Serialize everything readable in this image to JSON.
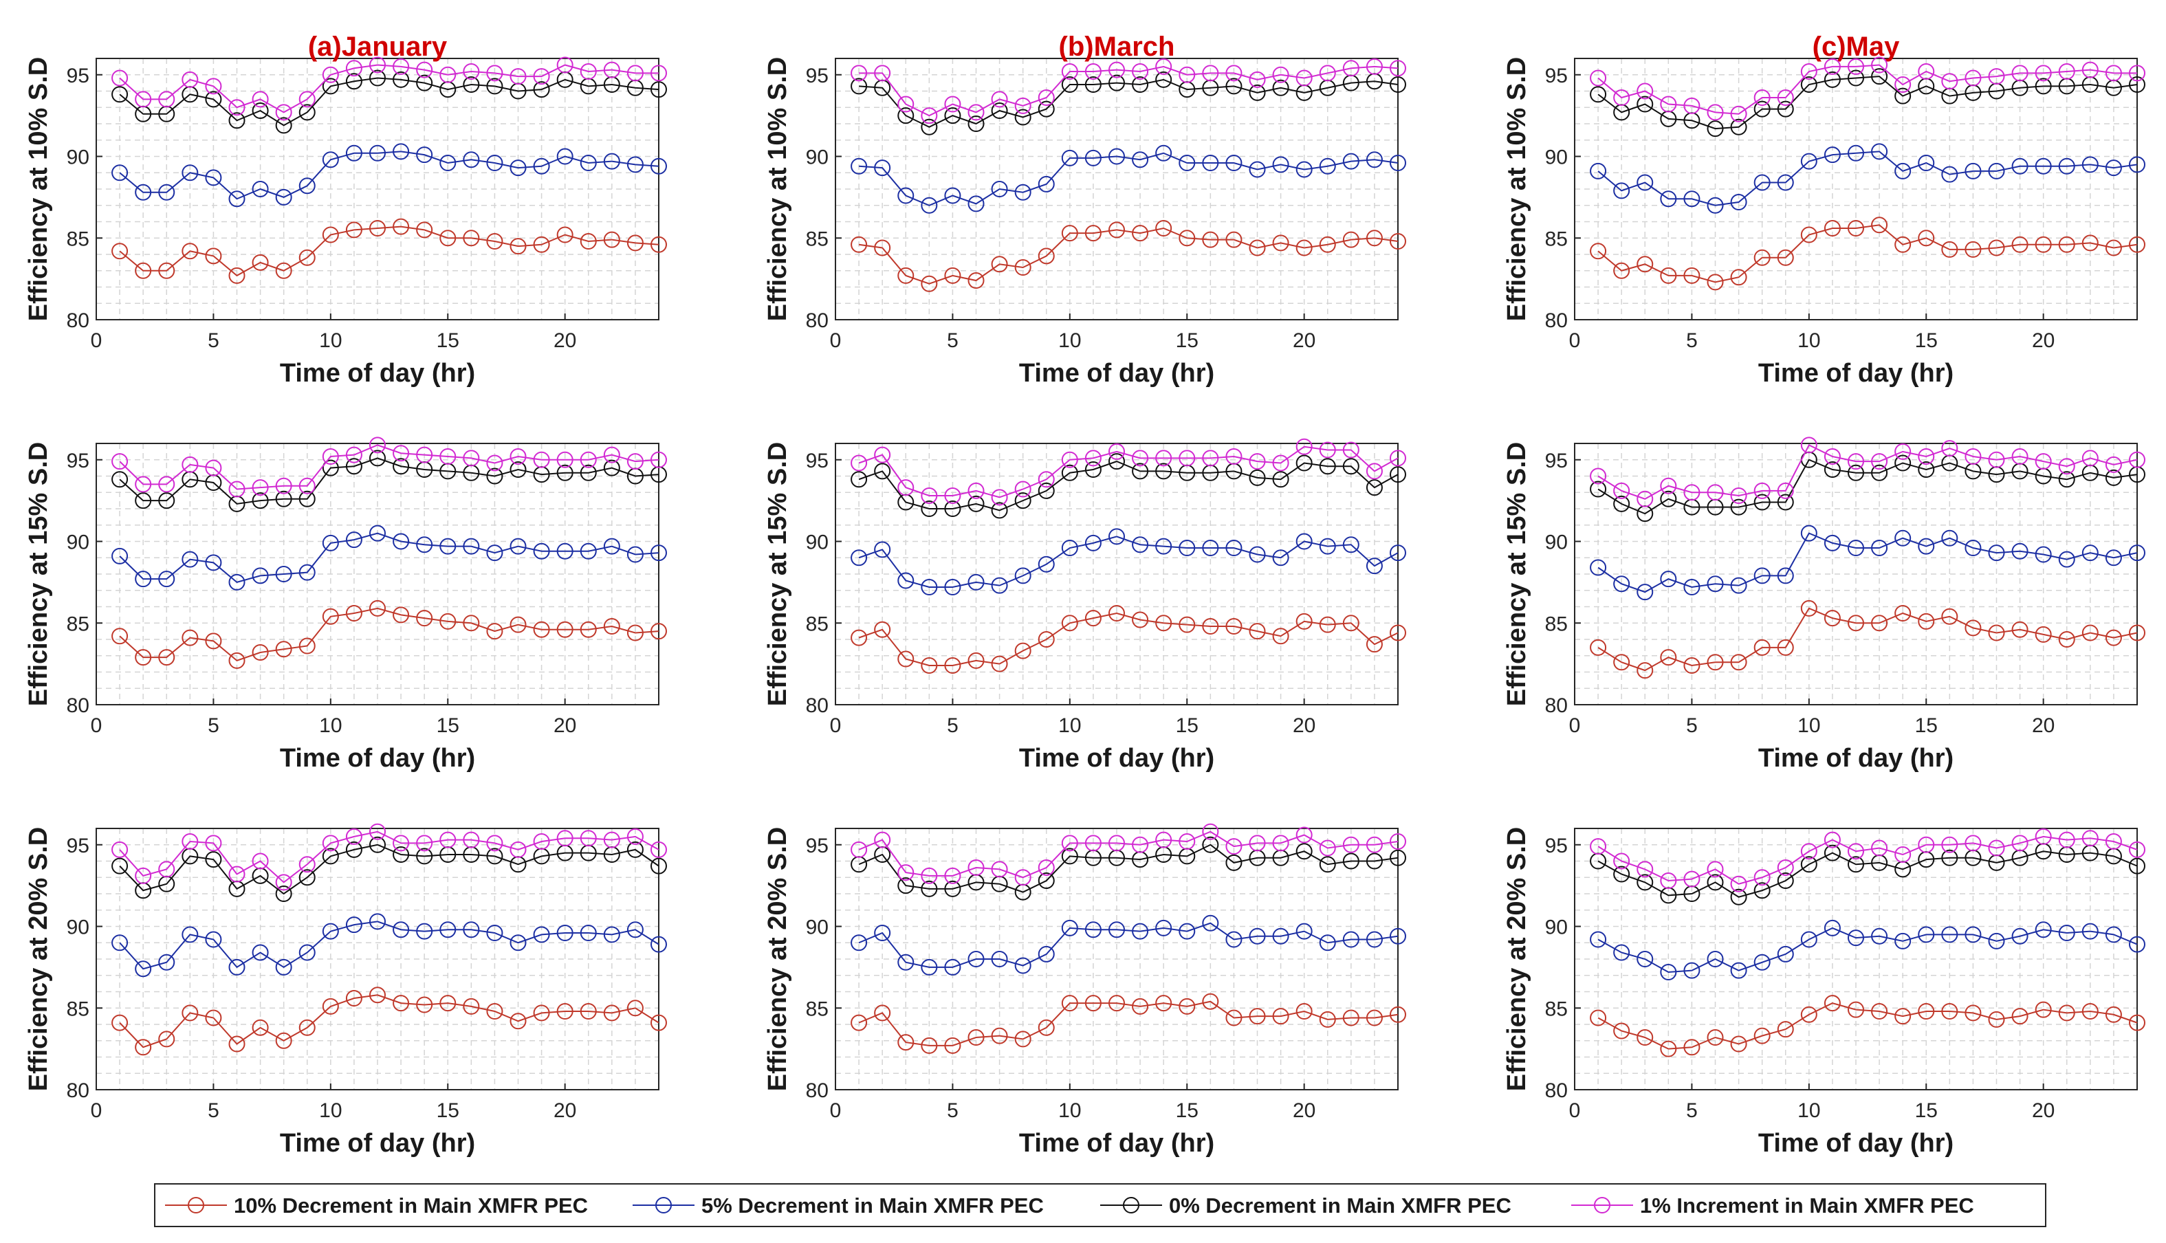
{
  "chart_data": {
    "type": "line",
    "x": [
      1,
      2,
      3,
      4,
      5,
      6,
      7,
      8,
      9,
      10,
      11,
      12,
      13,
      14,
      15,
      16,
      17,
      18,
      19,
      20,
      21,
      22,
      23,
      24
    ],
    "xlim": [
      0,
      24
    ],
    "ylim": [
      80,
      96
    ],
    "xticks": [
      "0",
      "5",
      "10",
      "15",
      "20"
    ],
    "yticks": [
      "80",
      "85",
      "90",
      "95"
    ],
    "xlabel": "Time of day (hr)",
    "columns": [
      "(a)January",
      "(b)March",
      "(c)May"
    ],
    "rows": [
      "Efficiency at 10% S.D",
      "Efficiency at 15% S.D",
      "Efficiency at 20% S.D"
    ],
    "legend": {
      "placement": "bottom-center",
      "entries": [
        {
          "name": "10% Decrement in Main XMFR PEC",
          "color": "#c0392b"
        },
        {
          "name": "5% Decrement in Main XMFR PEC",
          "color": "#1c2fa3"
        },
        {
          "name": "0% Decrement in Main XMFR PEC",
          "color": "#111111"
        },
        {
          "name": "1% Increment in Main XMFR PEC",
          "color": "#d22ad2"
        }
      ]
    },
    "grid": true,
    "panels": [
      {
        "row": 0,
        "col": 0,
        "series": [
          [
            84.2,
            83.0,
            83.0,
            84.2,
            83.9,
            82.7,
            83.5,
            83.0,
            83.8,
            85.2,
            85.5,
            85.6,
            85.7,
            85.5,
            85.0,
            85.0,
            84.8,
            84.5,
            84.6,
            85.2,
            84.8,
            84.9,
            84.7,
            84.6
          ],
          [
            89.0,
            87.8,
            87.8,
            89.0,
            88.7,
            87.4,
            88.0,
            87.5,
            88.2,
            89.8,
            90.2,
            90.2,
            90.3,
            90.1,
            89.6,
            89.8,
            89.6,
            89.3,
            89.4,
            90.0,
            89.6,
            89.7,
            89.5,
            89.4
          ],
          [
            93.8,
            92.6,
            92.6,
            93.8,
            93.5,
            92.2,
            92.8,
            91.9,
            92.7,
            94.3,
            94.6,
            94.8,
            94.7,
            94.5,
            94.1,
            94.4,
            94.3,
            94.0,
            94.1,
            94.7,
            94.3,
            94.4,
            94.2,
            94.1
          ],
          [
            94.8,
            93.5,
            93.5,
            94.7,
            94.3,
            93.0,
            93.5,
            92.7,
            93.5,
            95.0,
            95.4,
            95.6,
            95.5,
            95.3,
            95.0,
            95.2,
            95.1,
            94.9,
            94.9,
            95.6,
            95.2,
            95.3,
            95.1,
            95.1
          ]
        ]
      },
      {
        "row": 0,
        "col": 1,
        "series": [
          [
            84.6,
            84.4,
            82.7,
            82.2,
            82.7,
            82.4,
            83.4,
            83.2,
            83.9,
            85.3,
            85.3,
            85.5,
            85.3,
            85.6,
            85.0,
            84.9,
            84.9,
            84.4,
            84.7,
            84.4,
            84.6,
            84.9,
            85.0,
            84.8
          ],
          [
            89.4,
            89.3,
            87.6,
            87.0,
            87.6,
            87.1,
            88.0,
            87.8,
            88.3,
            89.9,
            89.9,
            90.0,
            89.8,
            90.2,
            89.6,
            89.6,
            89.6,
            89.2,
            89.5,
            89.2,
            89.4,
            89.7,
            89.8,
            89.6
          ],
          [
            94.3,
            94.2,
            92.5,
            91.8,
            92.5,
            92.0,
            92.8,
            92.4,
            92.9,
            94.4,
            94.4,
            94.5,
            94.4,
            94.7,
            94.1,
            94.2,
            94.3,
            93.9,
            94.2,
            93.9,
            94.2,
            94.5,
            94.6,
            94.4
          ],
          [
            95.1,
            95.1,
            93.2,
            92.5,
            93.2,
            92.7,
            93.5,
            93.1,
            93.6,
            95.2,
            95.2,
            95.3,
            95.2,
            95.5,
            95.0,
            95.1,
            95.1,
            94.7,
            95.0,
            94.8,
            95.1,
            95.4,
            95.5,
            95.4
          ]
        ]
      },
      {
        "row": 0,
        "col": 2,
        "series": [
          [
            84.2,
            83.0,
            83.4,
            82.7,
            82.7,
            82.3,
            82.6,
            83.8,
            83.8,
            85.2,
            85.6,
            85.6,
            85.8,
            84.6,
            85.0,
            84.3,
            84.3,
            84.4,
            84.6,
            84.6,
            84.6,
            84.7,
            84.4,
            84.6
          ],
          [
            89.1,
            87.9,
            88.4,
            87.4,
            87.4,
            87.0,
            87.2,
            88.4,
            88.4,
            89.7,
            90.1,
            90.2,
            90.3,
            89.1,
            89.6,
            88.9,
            89.1,
            89.1,
            89.4,
            89.4,
            89.4,
            89.5,
            89.3,
            89.5
          ],
          [
            93.8,
            92.7,
            93.2,
            92.3,
            92.2,
            91.7,
            91.8,
            92.9,
            92.9,
            94.4,
            94.7,
            94.8,
            94.9,
            93.7,
            94.3,
            93.7,
            93.9,
            94.0,
            94.2,
            94.3,
            94.3,
            94.4,
            94.2,
            94.4
          ],
          [
            94.8,
            93.6,
            94.0,
            93.2,
            93.1,
            92.7,
            92.6,
            93.6,
            93.6,
            95.2,
            95.5,
            95.5,
            95.6,
            94.4,
            95.2,
            94.6,
            94.8,
            94.9,
            95.1,
            95.1,
            95.2,
            95.3,
            95.1,
            95.1
          ]
        ]
      },
      {
        "row": 1,
        "col": 0,
        "series": [
          [
            84.2,
            82.9,
            82.9,
            84.1,
            83.9,
            82.7,
            83.2,
            83.4,
            83.6,
            85.4,
            85.6,
            85.9,
            85.5,
            85.3,
            85.1,
            85.0,
            84.5,
            84.9,
            84.6,
            84.6,
            84.6,
            84.8,
            84.4,
            84.5
          ],
          [
            89.1,
            87.7,
            87.7,
            88.9,
            88.7,
            87.5,
            87.9,
            88.0,
            88.1,
            89.9,
            90.1,
            90.5,
            90.0,
            89.8,
            89.7,
            89.7,
            89.3,
            89.7,
            89.4,
            89.4,
            89.4,
            89.7,
            89.2,
            89.3
          ],
          [
            93.8,
            92.5,
            92.5,
            93.8,
            93.6,
            92.3,
            92.5,
            92.6,
            92.6,
            94.5,
            94.6,
            95.1,
            94.6,
            94.4,
            94.3,
            94.2,
            94.0,
            94.4,
            94.1,
            94.2,
            94.2,
            94.5,
            94.0,
            94.1
          ],
          [
            94.9,
            93.5,
            93.5,
            94.7,
            94.5,
            93.2,
            93.3,
            93.4,
            93.4,
            95.2,
            95.3,
            95.9,
            95.4,
            95.3,
            95.2,
            95.1,
            94.8,
            95.2,
            95.0,
            95.0,
            95.0,
            95.3,
            94.9,
            95.0
          ]
        ]
      },
      {
        "row": 1,
        "col": 1,
        "series": [
          [
            84.1,
            84.6,
            82.8,
            82.4,
            82.4,
            82.7,
            82.5,
            83.3,
            84.0,
            85.0,
            85.3,
            85.6,
            85.2,
            85.0,
            84.9,
            84.8,
            84.8,
            84.5,
            84.2,
            85.1,
            84.9,
            85.0,
            83.7,
            84.4
          ],
          [
            89.0,
            89.5,
            87.6,
            87.2,
            87.2,
            87.5,
            87.3,
            87.9,
            88.6,
            89.6,
            89.9,
            90.3,
            89.8,
            89.7,
            89.6,
            89.6,
            89.6,
            89.2,
            89.0,
            90.0,
            89.7,
            89.8,
            88.5,
            89.3
          ],
          [
            93.8,
            94.3,
            92.4,
            92.0,
            92.0,
            92.3,
            91.9,
            92.5,
            93.1,
            94.2,
            94.4,
            94.9,
            94.3,
            94.3,
            94.2,
            94.2,
            94.3,
            93.9,
            93.8,
            94.8,
            94.6,
            94.6,
            93.3,
            94.1
          ],
          [
            94.8,
            95.3,
            93.3,
            92.8,
            92.8,
            93.1,
            92.7,
            93.2,
            93.8,
            95.0,
            95.1,
            95.5,
            95.1,
            95.1,
            95.1,
            95.1,
            95.2,
            94.9,
            94.8,
            95.8,
            95.6,
            95.6,
            94.3,
            95.1
          ]
        ]
      },
      {
        "row": 1,
        "col": 2,
        "series": [
          [
            83.5,
            82.6,
            82.1,
            82.9,
            82.4,
            82.6,
            82.6,
            83.5,
            83.5,
            85.9,
            85.3,
            85.0,
            85.0,
            85.6,
            85.1,
            85.4,
            84.7,
            84.4,
            84.6,
            84.3,
            84.0,
            84.4,
            84.1,
            84.4
          ],
          [
            88.4,
            87.4,
            86.9,
            87.7,
            87.2,
            87.4,
            87.3,
            87.9,
            87.9,
            90.5,
            89.9,
            89.6,
            89.6,
            90.2,
            89.7,
            90.2,
            89.6,
            89.3,
            89.4,
            89.2,
            88.9,
            89.3,
            89.0,
            89.3
          ],
          [
            93.2,
            92.3,
            91.7,
            92.6,
            92.1,
            92.1,
            92.1,
            92.4,
            92.4,
            95.0,
            94.4,
            94.2,
            94.2,
            94.8,
            94.4,
            94.8,
            94.3,
            94.1,
            94.3,
            94.0,
            93.8,
            94.2,
            93.9,
            94.1
          ],
          [
            94.0,
            93.1,
            92.6,
            93.4,
            93.0,
            93.0,
            92.8,
            93.1,
            93.1,
            95.9,
            95.2,
            94.9,
            94.9,
            95.5,
            95.2,
            95.7,
            95.2,
            95.0,
            95.2,
            94.9,
            94.6,
            95.1,
            94.7,
            95.0
          ]
        ]
      },
      {
        "row": 2,
        "col": 0,
        "series": [
          [
            84.1,
            82.6,
            83.1,
            84.7,
            84.4,
            82.8,
            83.8,
            83.0,
            83.8,
            85.1,
            85.6,
            85.8,
            85.3,
            85.2,
            85.3,
            85.1,
            84.8,
            84.2,
            84.7,
            84.8,
            84.8,
            84.7,
            85.0,
            84.1
          ],
          [
            89.0,
            87.4,
            87.8,
            89.5,
            89.2,
            87.5,
            88.4,
            87.5,
            88.4,
            89.7,
            90.1,
            90.3,
            89.8,
            89.7,
            89.8,
            89.8,
            89.6,
            89.0,
            89.5,
            89.6,
            89.6,
            89.5,
            89.8,
            88.9
          ],
          [
            93.7,
            92.2,
            92.6,
            94.3,
            94.1,
            92.3,
            93.1,
            92.0,
            93.0,
            94.3,
            94.7,
            95.0,
            94.4,
            94.3,
            94.4,
            94.4,
            94.3,
            93.8,
            94.3,
            94.5,
            94.5,
            94.4,
            94.7,
            93.7
          ],
          [
            94.7,
            93.1,
            93.5,
            95.2,
            95.1,
            93.2,
            94.0,
            92.7,
            93.8,
            95.1,
            95.5,
            95.8,
            95.1,
            95.1,
            95.3,
            95.3,
            95.1,
            94.7,
            95.2,
            95.4,
            95.4,
            95.3,
            95.5,
            94.7
          ]
        ]
      },
      {
        "row": 2,
        "col": 1,
        "series": [
          [
            84.1,
            84.7,
            82.9,
            82.7,
            82.7,
            83.2,
            83.3,
            83.1,
            83.8,
            85.3,
            85.3,
            85.3,
            85.1,
            85.3,
            85.1,
            85.4,
            84.4,
            84.5,
            84.5,
            84.8,
            84.3,
            84.4,
            84.4,
            84.6
          ],
          [
            89.0,
            89.6,
            87.8,
            87.5,
            87.5,
            88.0,
            88.0,
            87.6,
            88.3,
            89.9,
            89.8,
            89.8,
            89.7,
            89.9,
            89.7,
            90.2,
            89.2,
            89.4,
            89.4,
            89.7,
            89.0,
            89.2,
            89.2,
            89.4
          ],
          [
            93.8,
            94.4,
            92.5,
            92.3,
            92.3,
            92.7,
            92.6,
            92.1,
            92.8,
            94.3,
            94.2,
            94.2,
            94.1,
            94.4,
            94.3,
            95.0,
            93.9,
            94.2,
            94.2,
            94.6,
            93.8,
            94.0,
            94.0,
            94.2
          ],
          [
            94.7,
            95.3,
            93.3,
            93.1,
            93.1,
            93.6,
            93.5,
            93.0,
            93.6,
            95.1,
            95.1,
            95.1,
            95.0,
            95.3,
            95.2,
            95.8,
            94.9,
            95.1,
            95.1,
            95.6,
            94.8,
            95.0,
            95.0,
            95.2
          ]
        ]
      },
      {
        "row": 2,
        "col": 2,
        "series": [
          [
            84.4,
            83.6,
            83.2,
            82.5,
            82.6,
            83.2,
            82.8,
            83.3,
            83.7,
            84.6,
            85.3,
            84.9,
            84.8,
            84.5,
            84.8,
            84.8,
            84.7,
            84.3,
            84.5,
            84.9,
            84.7,
            84.8,
            84.6,
            84.1
          ],
          [
            89.2,
            88.4,
            88.0,
            87.2,
            87.3,
            88.0,
            87.3,
            87.8,
            88.3,
            89.2,
            89.9,
            89.3,
            89.4,
            89.1,
            89.5,
            89.5,
            89.5,
            89.1,
            89.4,
            89.8,
            89.6,
            89.7,
            89.5,
            88.9
          ],
          [
            94.0,
            93.2,
            92.7,
            91.9,
            92.0,
            92.7,
            91.8,
            92.2,
            92.8,
            93.8,
            94.5,
            93.8,
            93.9,
            93.5,
            94.1,
            94.2,
            94.2,
            93.9,
            94.2,
            94.6,
            94.4,
            94.5,
            94.3,
            93.7
          ],
          [
            94.9,
            94.0,
            93.5,
            92.8,
            92.9,
            93.5,
            92.6,
            93.0,
            93.6,
            94.6,
            95.3,
            94.6,
            94.8,
            94.4,
            95.0,
            95.0,
            95.1,
            94.8,
            95.1,
            95.5,
            95.3,
            95.4,
            95.2,
            94.7
          ]
        ]
      }
    ]
  }
}
